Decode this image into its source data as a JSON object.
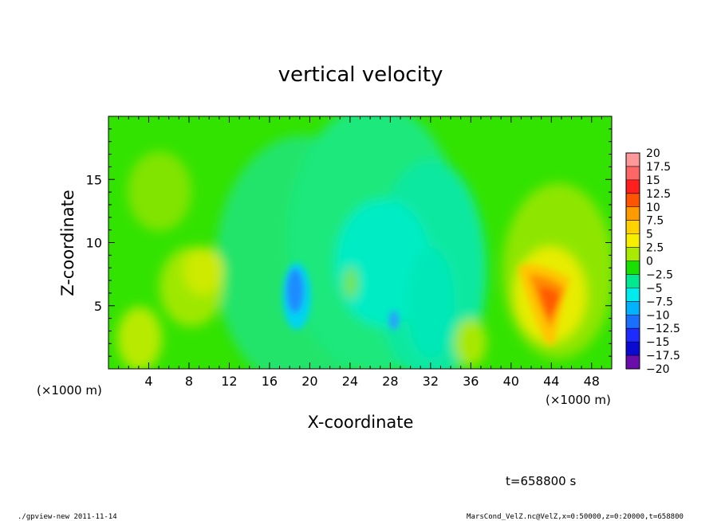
{
  "chart_data": {
    "type": "heatmap",
    "title": "vertical velocity",
    "xlabel": "X-coordinate",
    "ylabel": "Z-coordinate",
    "x_unit_left": "(×1000 m)",
    "x_unit_right": "(×1000 m)",
    "xlim": [
      0,
      50
    ],
    "ylim": [
      0,
      20
    ],
    "x_ticks": [
      "4",
      "8",
      "12",
      "16",
      "20",
      "24",
      "28",
      "32",
      "36",
      "40",
      "44",
      "48"
    ],
    "y_ticks": [
      "5",
      "10",
      "15"
    ],
    "colorbar": {
      "levels": [
        "20",
        "17.5",
        "15",
        "12.5",
        "10",
        "7.5",
        "5",
        "2.5",
        "0",
        "−2.5",
        "−5",
        "−7.5",
        "−10",
        "−12.5",
        "−15",
        "−17.5",
        "−20"
      ],
      "colors_top_to_bottom": [
        "#ff9999",
        "#ff6666",
        "#ff1f1f",
        "#ff5500",
        "#ff9a00",
        "#ffd200",
        "#f7ef00",
        "#a8ea00",
        "#5ee000",
        "#19e000",
        "#00e890",
        "#00ecec",
        "#00b3ff",
        "#1a6fff",
        "#1e2bff",
        "#0a0ad0",
        "#6a0dad"
      ]
    },
    "features": [
      {
        "kind": "updraft",
        "x": 43.5,
        "z": 5,
        "peak": 12
      },
      {
        "kind": "downdraft",
        "x": 18.5,
        "z": 6.5,
        "peak": -9
      },
      {
        "kind": "downdraft",
        "x": 28.5,
        "z": 3.8,
        "peak": -8
      },
      {
        "kind": "weak updraft",
        "x": 9,
        "z": 7,
        "peak": 4
      },
      {
        "kind": "weak updraft",
        "x": 3,
        "z": 2.5,
        "peak": 5
      },
      {
        "kind": "weak updraft",
        "x": 36,
        "z": 2,
        "peak": 4
      }
    ]
  },
  "annotations": {
    "time": "t=658800 s",
    "footer_left": "./gpview-new  2011-11-14",
    "footer_right": "MarsCond_VelZ.nc@VelZ,x=0:50000,z=0:20000,t=658800"
  }
}
